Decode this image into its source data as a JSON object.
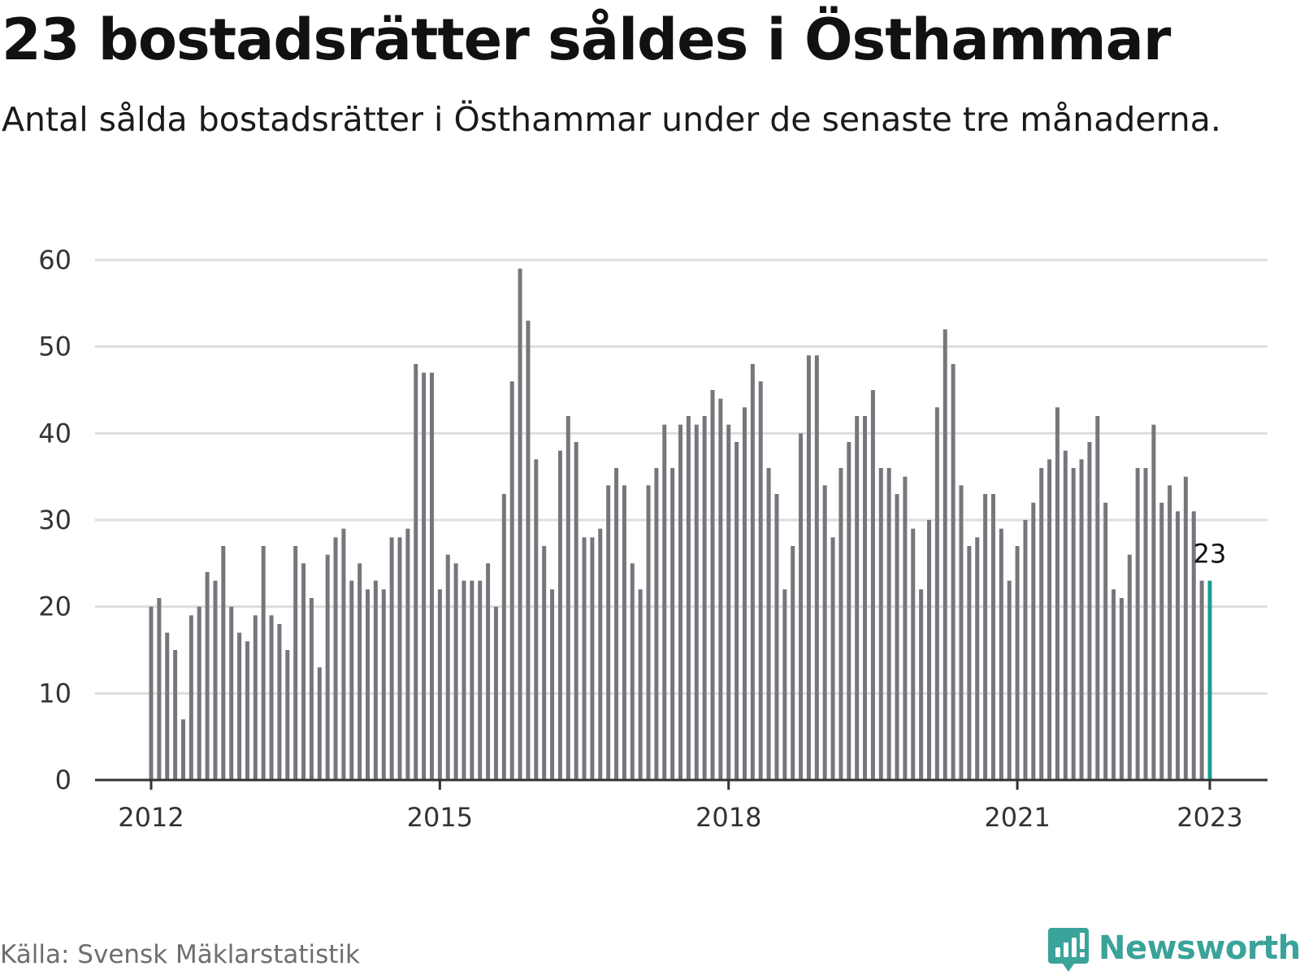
{
  "title": "23 bostadsrätter såldes i Östhammar",
  "subtitle": "Antal sålda bostadsrätter i Östhammar under de senaste tre månaderna.",
  "source": "Källa: Svensk Mäklarstatistik",
  "brand": "Newsworthy",
  "colors": {
    "bar": "#76767c",
    "highlight": "#1a9e92",
    "grid": "#dddddd",
    "axis": "#333333",
    "brand": "#3aa39a"
  },
  "chart_data": {
    "type": "bar",
    "title": "23 bostadsrätter såldes i Östhammar",
    "subtitle": "Antal sålda bostadsrätter i Östhammar under de senaste tre månaderna.",
    "x_start": "2012-01",
    "x_end": "2023-01",
    "frequency": "monthly",
    "values": [
      20,
      21,
      17,
      15,
      7,
      19,
      20,
      24,
      23,
      27,
      20,
      17,
      16,
      19,
      27,
      19,
      18,
      15,
      27,
      25,
      21,
      13,
      26,
      28,
      29,
      23,
      25,
      22,
      23,
      22,
      28,
      28,
      29,
      48,
      47,
      47,
      22,
      26,
      25,
      23,
      23,
      23,
      25,
      20,
      33,
      46,
      59,
      53,
      37,
      27,
      22,
      38,
      42,
      39,
      28,
      28,
      29,
      34,
      36,
      34,
      25,
      22,
      34,
      36,
      41,
      36,
      41,
      42,
      41,
      42,
      45,
      44,
      41,
      39,
      43,
      48,
      46,
      36,
      33,
      22,
      27,
      40,
      49,
      49,
      34,
      28,
      36,
      39,
      42,
      42,
      45,
      36,
      36,
      33,
      35,
      29,
      22,
      30,
      43,
      52,
      48,
      34,
      27,
      28,
      33,
      33,
      29,
      23,
      27,
      30,
      32,
      36,
      37,
      43,
      38,
      36,
      37,
      39,
      42,
      32,
      22,
      21,
      26,
      36,
      36,
      41,
      32,
      34,
      31,
      35,
      31,
      23,
      23
    ],
    "highlight_last": true,
    "annotation": "23",
    "x_ticks": [
      "2012",
      "2015",
      "2018",
      "2021",
      "2023"
    ],
    "y_ticks": [
      "0",
      "10",
      "20",
      "30",
      "40",
      "50",
      "60"
    ],
    "ylim": [
      0,
      60
    ],
    "grid": true,
    "legend": "none"
  }
}
